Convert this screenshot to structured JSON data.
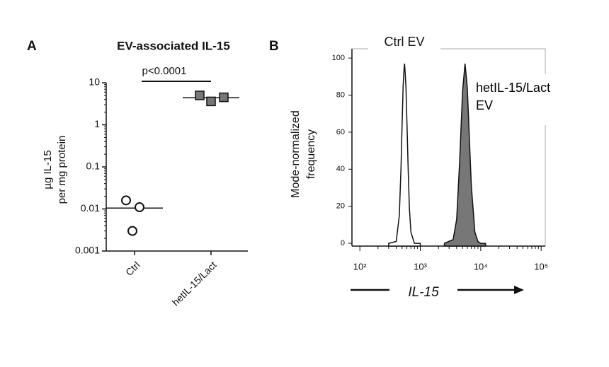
{
  "chart_data": [
    {
      "type": "dot",
      "panel": "A",
      "title": "EV-associated IL-15",
      "y_label": [
        "µg IL-15",
        "per mg protein"
      ],
      "categories": [
        "Ctrl",
        "hetIL-15/Lact"
      ],
      "values": [
        [
          0.016,
          0.011,
          0.003
        ],
        [
          5,
          3.6,
          4.5
        ]
      ],
      "means": [
        0.0105,
        4.4
      ],
      "markers": [
        "open",
        "filled"
      ],
      "color": "#777777",
      "annotation": "p<0.0001",
      "log_y": true,
      "ylim": [
        0.001,
        10
      ],
      "yticks": [
        0.001,
        0.01,
        0.1,
        1,
        10
      ]
    },
    {
      "type": "histogram_overlay",
      "panel": "B",
      "y_label": [
        "Mode-normalized",
        "frequency"
      ],
      "x_label": "IL-15",
      "log_x": true,
      "xlim": [
        74,
        117000
      ],
      "ylim": [
        -1.5,
        105
      ],
      "xticks": [
        {
          "value": 100,
          "label": "10²"
        },
        {
          "value": 1000,
          "label": "10³"
        },
        {
          "value": 10000,
          "label": "10⁴"
        },
        {
          "value": 100000,
          "label": "10⁵"
        }
      ],
      "yticks": [
        0,
        20,
        40,
        60,
        80,
        100
      ],
      "series": [
        {
          "name": "Ctrl EV",
          "color": "#ffffff",
          "x": [
            300,
            400,
            450,
            480,
            500,
            520,
            540,
            550,
            560,
            580,
            600,
            630,
            660,
            700,
            800,
            1000
          ],
          "values": [
            0,
            1,
            15,
            41,
            64,
            85,
            95,
            97,
            93,
            84,
            66,
            40,
            19,
            6,
            0,
            0
          ]
        },
        {
          "name": "hetIL-15/Lact EV",
          "color": "#777777",
          "x": [
            2500,
            3500,
            4000,
            4500,
            5000,
            5500,
            6000,
            6500,
            7000,
            8000,
            9000,
            10000,
            12000
          ],
          "values": [
            0,
            2,
            13,
            45,
            82,
            97,
            84,
            56,
            31,
            6,
            1,
            0,
            0
          ]
        }
      ]
    }
  ]
}
